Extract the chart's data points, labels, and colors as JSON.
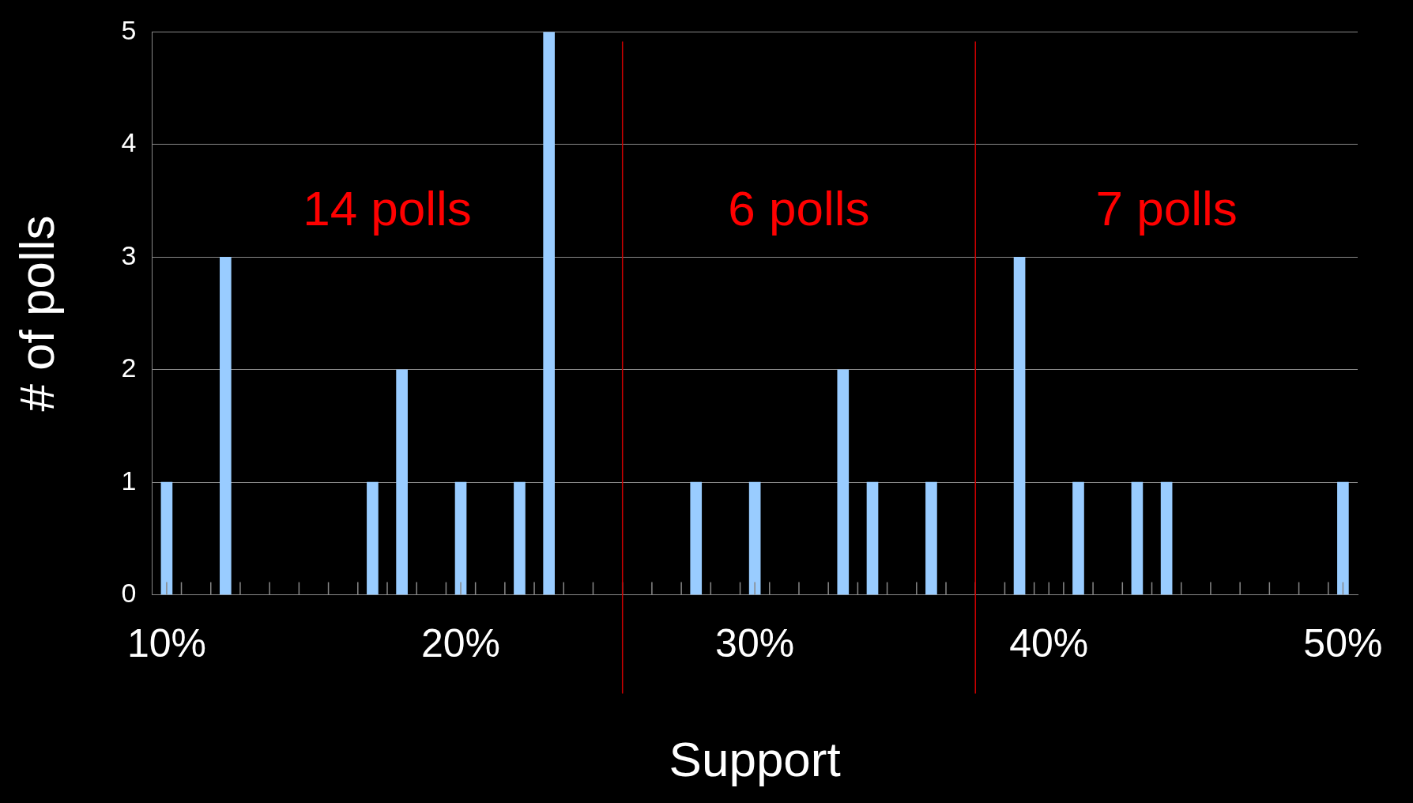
{
  "chart_data": {
    "type": "bar",
    "xlabel": "Support",
    "ylabel": "# of polls",
    "x": [
      10,
      12,
      17,
      18,
      20,
      22,
      23,
      28,
      30,
      33,
      34,
      36,
      39,
      41,
      43,
      44,
      50
    ],
    "values": [
      1,
      3,
      1,
      2,
      1,
      1,
      5,
      1,
      1,
      2,
      1,
      1,
      3,
      1,
      1,
      1,
      1
    ],
    "color": "#99ccff",
    "xlim": [
      9.5,
      50.5
    ],
    "xticks": [
      {
        "value": 10,
        "label": "10%"
      },
      {
        "value": 20,
        "label": "20%"
      },
      {
        "value": 30,
        "label": "30%"
      },
      {
        "value": 40,
        "label": "40%"
      },
      {
        "value": 50,
        "label": "50%"
      },
      {
        "value": 10.5,
        "label": null
      },
      {
        "value": 11.5,
        "label": null
      },
      {
        "value": 12.5,
        "label": null
      },
      {
        "value": 13.5,
        "label": null
      },
      {
        "value": 14.5,
        "label": null
      },
      {
        "value": 15.5,
        "label": null
      },
      {
        "value": 16.5,
        "label": null
      },
      {
        "value": 17.5,
        "label": null
      },
      {
        "value": 18.5,
        "label": null
      },
      {
        "value": 19.5,
        "label": null
      },
      {
        "value": 20.5,
        "label": null
      },
      {
        "value": 21.5,
        "label": null
      },
      {
        "value": 22.5,
        "label": null
      },
      {
        "value": 23.5,
        "label": null
      },
      {
        "value": 24.5,
        "label": null
      },
      {
        "value": 25.5,
        "label": null
      },
      {
        "value": 26.5,
        "label": null
      },
      {
        "value": 27.5,
        "label": null
      },
      {
        "value": 28.5,
        "label": null
      },
      {
        "value": 29.5,
        "label": null
      },
      {
        "value": 30.5,
        "label": null
      },
      {
        "value": 31.5,
        "label": null
      },
      {
        "value": 32.5,
        "label": null
      },
      {
        "value": 33.5,
        "label": null
      },
      {
        "value": 34.5,
        "label": null
      },
      {
        "value": 35.5,
        "label": null
      },
      {
        "value": 36.5,
        "label": null
      },
      {
        "value": 37.5,
        "label": null
      },
      {
        "value": 38.5,
        "label": null
      },
      {
        "value": 39.5,
        "label": null
      },
      {
        "value": 40.5,
        "label": null
      },
      {
        "value": 41.5,
        "label": null
      },
      {
        "value": 42.5,
        "label": null
      },
      {
        "value": 43.5,
        "label": null
      },
      {
        "value": 44.5,
        "label": null
      },
      {
        "value": 45.5,
        "label": null
      },
      {
        "value": 46.5,
        "label": null
      },
      {
        "value": 47.5,
        "label": null
      },
      {
        "value": 48.5,
        "label": null
      },
      {
        "value": 49.5,
        "label": null
      }
    ],
    "ylim": [
      0,
      5
    ],
    "yticks": [
      0,
      1,
      2,
      3,
      4,
      5
    ],
    "grid": "y",
    "ref_lines": [
      {
        "axis": "x",
        "value": 25.5,
        "color": "#cc0000"
      },
      {
        "axis": "x",
        "value": 37.5,
        "color": "#cc0000"
      }
    ],
    "annotations": [
      "14 polls",
      "6 polls",
      "7 polls"
    ]
  }
}
